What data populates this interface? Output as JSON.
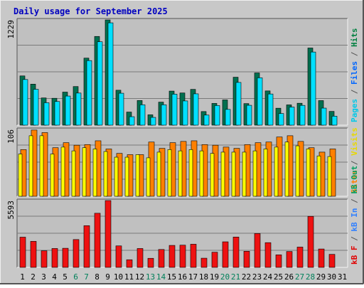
{
  "chart_data": [
    {
      "type": "bar",
      "title": "Daily usage for September 2025",
      "ymax_label": "1229",
      "ylabel_parts": [
        {
          "text": "Pages",
          "color": "#00c8e8"
        },
        {
          "text": " / ",
          "color": "#555555"
        },
        {
          "text": "Files",
          "color": "#0066ff"
        },
        {
          "text": " / ",
          "color": "#555555"
        },
        {
          "text": "Hits",
          "color": "#008040"
        }
      ],
      "categories": [
        "1",
        "2",
        "3",
        "4",
        "5",
        "6",
        "7",
        "8",
        "9",
        "10",
        "11",
        "12",
        "13",
        "14",
        "15",
        "16",
        "17",
        "18",
        "19",
        "20",
        "21",
        "22",
        "23",
        "24",
        "25",
        "26",
        "27",
        "28",
        "29",
        "30",
        "31"
      ],
      "ylim": [
        0,
        1229
      ],
      "series": [
        {
          "name": "Hits",
          "color": "#006f4f",
          "values": [
            575,
            479,
            318,
            314,
            386,
            451,
            783,
            1036,
            1229,
            408,
            153,
            288,
            121,
            269,
            398,
            376,
            418,
            159,
            254,
            295,
            560,
            252,
            610,
            400,
            198,
            237,
            256,
            901,
            287,
            161,
            0
          ]
        },
        {
          "name": "Files",
          "color": "#00e0ff",
          "values": [
            533,
            419,
            262,
            276,
            340,
            375,
            754,
            974,
            1195,
            373,
            99,
            238,
            91,
            238,
            362,
            283,
            366,
            118,
            229,
            184,
            499,
            232,
            553,
            364,
            136,
            211,
            231,
            854,
            199,
            105,
            0
          ]
        },
        {
          "name": "Pages",
          "color": "#00c8e8",
          "values": [
            533,
            419,
            262,
            276,
            340,
            375,
            754,
            974,
            1195,
            373,
            99,
            238,
            91,
            238,
            362,
            283,
            366,
            118,
            229,
            184,
            499,
            232,
            553,
            364,
            136,
            211,
            231,
            854,
            199,
            105,
            0
          ]
        }
      ]
    },
    {
      "type": "bar",
      "ymax_label": "106",
      "ylabel_parts": [
        {
          "text": "Sites",
          "color": "#ff8000"
        },
        {
          "text": " / ",
          "color": "#555555"
        },
        {
          "text": "Visits",
          "color": "#e8d800"
        }
      ],
      "ylim": [
        0,
        106
      ],
      "series": [
        {
          "name": "Visits",
          "color": "#ffff00",
          "values": [
            67,
            96,
            96,
            67,
            78,
            72,
            77,
            75,
            71,
            62,
            62,
            66,
            61,
            70,
            74,
            72,
            74,
            72,
            68,
            70,
            70,
            70,
            72,
            75,
            78,
            86,
            80,
            75,
            64,
            63,
            0
          ]
        },
        {
          "name": "Sites",
          "color": "#ff8000",
          "values": [
            74,
            105,
            101,
            77,
            85,
            81,
            82,
            88,
            75,
            68,
            66,
            66,
            86,
            76,
            85,
            87,
            88,
            82,
            81,
            78,
            76,
            82,
            85,
            86,
            94,
            96,
            87,
            77,
            70,
            75,
            0
          ]
        }
      ]
    },
    {
      "type": "bar",
      "ymax_label": "5593",
      "ylabel_parts": [
        {
          "text": "kB F",
          "color": "#e00000"
        },
        {
          "text": " / ",
          "color": "#555555"
        },
        {
          "text": "kB In",
          "color": "#3080ff"
        },
        {
          "text": " / ",
          "color": "#555555"
        },
        {
          "text": "kB Out",
          "color": "#00a060"
        }
      ],
      "ylim": [
        0,
        5593
      ],
      "series": [
        {
          "name": "kB F",
          "color": "#ee1111",
          "values": [
            2530,
            2180,
            1390,
            1580,
            1600,
            2330,
            3490,
            4530,
            5593,
            1800,
            640,
            1580,
            760,
            1500,
            1840,
            1860,
            1940,
            770,
            1270,
            2140,
            2540,
            1350,
            2830,
            2070,
            1050,
            1330,
            1700,
            4270,
            1540,
            1090,
            0
          ]
        }
      ]
    }
  ],
  "weekend_days": [
    "6",
    "7",
    "13",
    "14",
    "20",
    "21",
    "27",
    "28"
  ],
  "label_colors": {
    "weekday": "#000000",
    "weekend": "#00805a",
    "title": "#0000c0",
    "grid": "#7a7a7a",
    "plot_bg": "#c0c0c0",
    "chart_bg": "#c8c8c8"
  }
}
